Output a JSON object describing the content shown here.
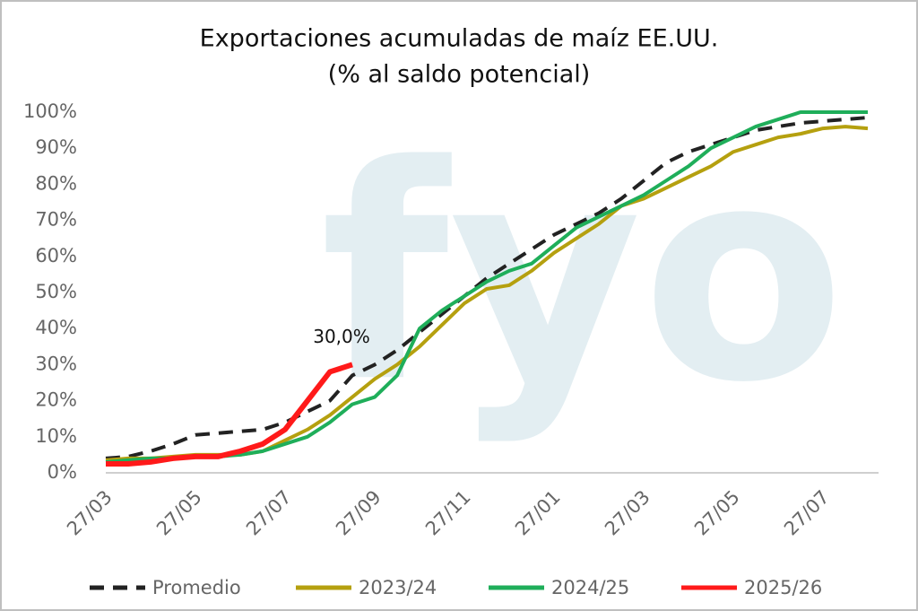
{
  "chart_data": {
    "type": "line",
    "title": "Exportaciones acumuladas de maíz EE.UU.",
    "subtitle": "(% al saldo potencial)",
    "watermark": "fyo",
    "categories": [
      "27/03",
      null,
      null,
      null,
      "27/05",
      null,
      null,
      null,
      "27/07",
      null,
      null,
      null,
      "27/09",
      null,
      null,
      null,
      "27/11",
      null,
      null,
      null,
      "27/01",
      null,
      null,
      null,
      "27/03",
      null,
      null,
      null,
      "27/05",
      null,
      null,
      null,
      "27/07",
      null,
      null
    ],
    "series": [
      {
        "name": "Promedio",
        "color": "#222222",
        "dash": true,
        "values": [
          4,
          4.5,
          6,
          8,
          10.5,
          11,
          11.5,
          12,
          14,
          17,
          20,
          27,
          30,
          34,
          39,
          44,
          49,
          54,
          58,
          62,
          66,
          69,
          72,
          76,
          81,
          86,
          89,
          91,
          93,
          95,
          96,
          97,
          97.5,
          98,
          98.5
        ]
      },
      {
        "name": "2023/24",
        "color": "#b5a00f",
        "values": [
          3.5,
          4,
          4,
          4.5,
          5,
          5,
          5,
          6,
          9,
          12,
          16,
          21,
          26,
          30,
          35,
          41,
          47,
          51,
          52,
          56,
          61,
          65,
          69,
          74,
          76,
          79,
          82,
          85,
          89,
          91,
          93,
          94,
          95.5,
          96,
          95.5
        ]
      },
      {
        "name": "2024/25",
        "color": "#1fae5a",
        "values": [
          3,
          3.5,
          4,
          4,
          4.5,
          4.5,
          5,
          6,
          8,
          10,
          14,
          19,
          21,
          27,
          40,
          45,
          49,
          53,
          56,
          58,
          63,
          68,
          71,
          74,
          77,
          81,
          85,
          90,
          93,
          96,
          98,
          100,
          100,
          100,
          100
        ]
      },
      {
        "name": "2025/26",
        "color": "#ff1a1a",
        "values": [
          2.5,
          2.5,
          3,
          4,
          4.5,
          4.5,
          6,
          8,
          12,
          20,
          28,
          30,
          null,
          null,
          null,
          null,
          null,
          null,
          null,
          null,
          null,
          null,
          null,
          null,
          null,
          null,
          null,
          null,
          null,
          null,
          null,
          null,
          null,
          null,
          null
        ],
        "value_labels": [
          null,
          null,
          null,
          null,
          null,
          null,
          null,
          null,
          null,
          null,
          null,
          "30,0%",
          null,
          null,
          null,
          null,
          null,
          null,
          null,
          null,
          null,
          null,
          null,
          null,
          null,
          null,
          null,
          null,
          null,
          null,
          null,
          null,
          null,
          null,
          null
        ]
      }
    ],
    "ylim": [
      0,
      100
    ],
    "yticks": [
      {
        "value": 0,
        "label": "0%"
      },
      {
        "value": 10,
        "label": "10%"
      },
      {
        "value": 20,
        "label": "20%"
      },
      {
        "value": 30,
        "label": "30%"
      },
      {
        "value": 40,
        "label": "40%"
      },
      {
        "value": 50,
        "label": "50%"
      },
      {
        "value": 60,
        "label": "60%"
      },
      {
        "value": 70,
        "label": "70%"
      },
      {
        "value": 80,
        "label": "80%"
      },
      {
        "value": 90,
        "label": "90%"
      },
      {
        "value": 100,
        "label": "100%"
      }
    ],
    "grid": false,
    "legend": "bottom"
  }
}
